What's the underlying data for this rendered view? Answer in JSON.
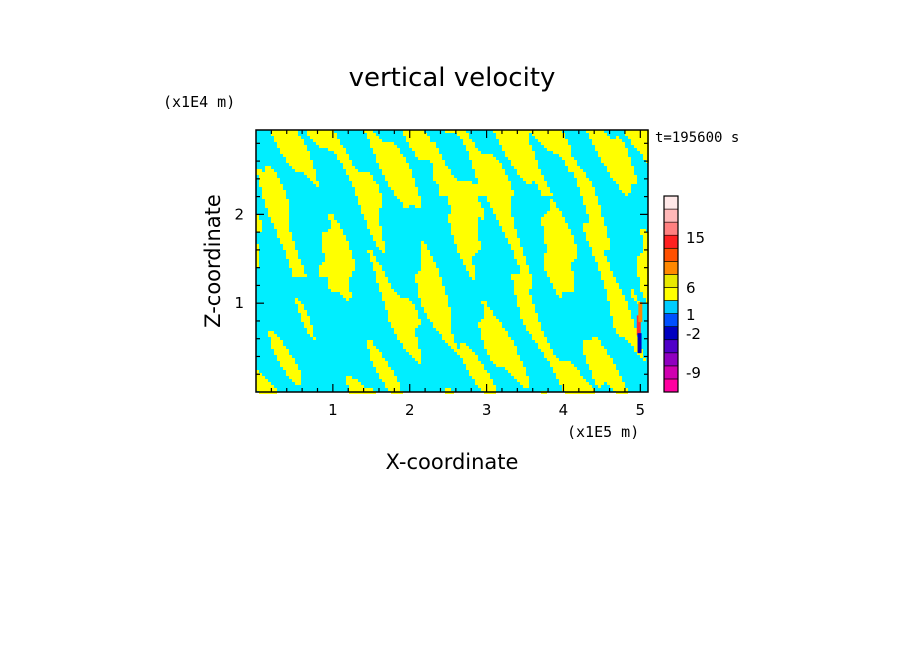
{
  "chart_data": {
    "type": "heatmap",
    "title": "vertical velocity",
    "xlabel": "X-coordinate",
    "ylabel": "Z-coordinate",
    "x_unit": "(x1E5 m)",
    "y_unit": "(x1E4 m)",
    "time_label": "t=195600 s",
    "xlim": [
      0,
      5.1
    ],
    "ylim": [
      0,
      2.95
    ],
    "x_ticks": [
      "1",
      "2",
      "3",
      "4",
      "5"
    ],
    "y_ticks": [
      "1",
      "2"
    ],
    "colorbar": {
      "labels": [
        "15",
        "6",
        "1",
        "-2",
        "-9"
      ],
      "colors": [
        "#ff00a0",
        "#d000b0",
        "#9000c0",
        "#5000c8",
        "#0000c0",
        "#0050ff",
        "#00ccff",
        "#ffff00",
        "#e8e800",
        "#ff8800",
        "#ff5000",
        "#ff2020",
        "#ff8080",
        "#ffb8b8",
        "#ffe8e8"
      ]
    },
    "colors": {
      "positive": "#ffff00",
      "negative": "#00eeff"
    }
  }
}
